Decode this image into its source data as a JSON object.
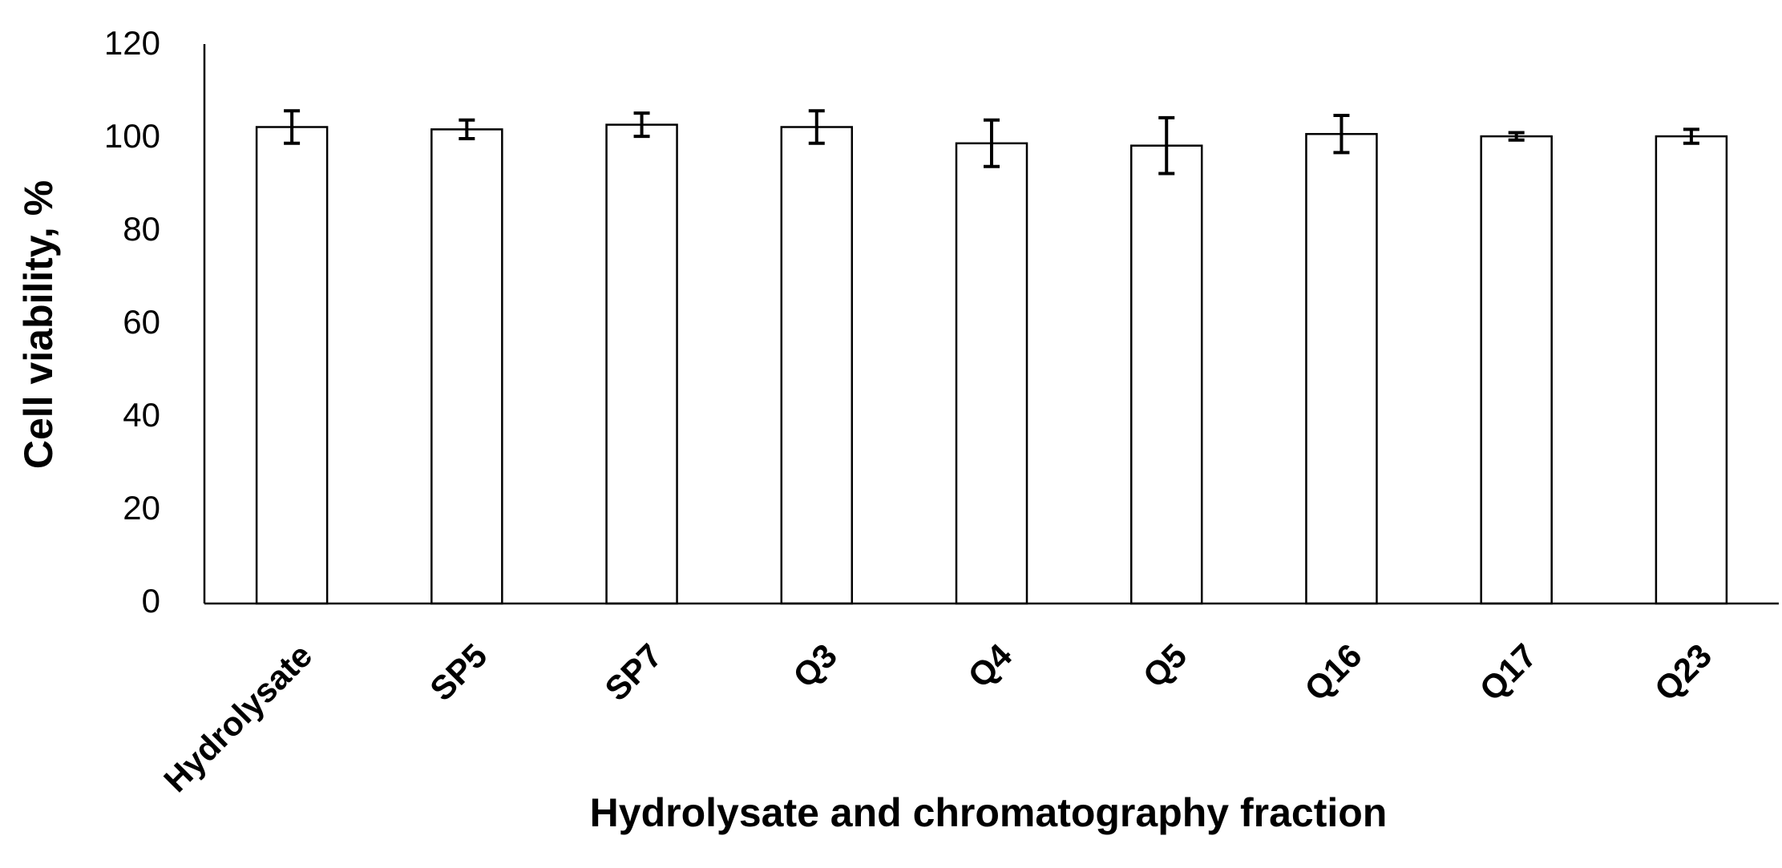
{
  "chart_data": {
    "type": "bar",
    "x_label": "Hydrolysate and chromatography fraction",
    "y_label": "Cell viability, %",
    "categories": [
      "Hydrolysate",
      "SP5",
      "SP7",
      "Q3",
      "Q4",
      "Q5",
      "Q16",
      "Q17",
      "Q23"
    ],
    "values": [
      102.5,
      102,
      103,
      102.5,
      99,
      98.5,
      101,
      100.5,
      100.5
    ],
    "errors": [
      3.5,
      2,
      2.5,
      3.5,
      5,
      6,
      4,
      0.8,
      1.5
    ],
    "color": "#ffffff",
    "ylim": [
      0,
      120
    ],
    "yticks": [
      0,
      20,
      40,
      60,
      80,
      100,
      120
    ],
    "grid": false
  }
}
